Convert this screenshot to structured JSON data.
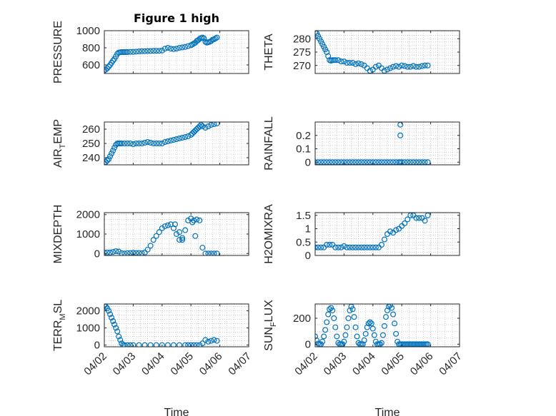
{
  "figure": {
    "title": "Figure 1 high",
    "background": "#ffffff",
    "marker_color": "#0072BD",
    "axes_color": "#262626",
    "grid_color": "#9a9a9a"
  },
  "chart_data": [
    {
      "type": "scatter",
      "id": "pressure",
      "title": "Figure 1 high",
      "ylabel": "PRESSURE",
      "xlabel": "",
      "xlim": [
        0,
        5
      ],
      "ylim": [
        500,
        1000
      ],
      "yticks": [
        600,
        800,
        1000
      ],
      "yticklabels": [
        "600",
        "800",
        "1000"
      ],
      "xticks": [
        0,
        1,
        2,
        3,
        4,
        5
      ],
      "xticklabels": [
        "04/02",
        "04/03",
        "04/04",
        "04/05",
        "04/06",
        "04/07"
      ],
      "show_xticklabels": false,
      "grid": true,
      "series": [
        {
          "x": [
            0,
            0.05,
            0.1,
            0.15,
            0.2,
            0.25,
            0.3,
            0.35,
            0.4,
            0.45,
            0.5,
            0.55,
            0.6,
            0.65,
            0.7,
            0.75,
            0.8,
            0.9,
            1.0,
            1.1,
            1.2,
            1.3,
            1.4,
            1.5,
            1.6,
            1.7,
            1.8,
            1.9,
            2.0,
            2.1,
            2.2,
            2.3,
            2.4,
            2.5,
            2.6,
            2.7,
            2.8,
            2.9,
            3.0,
            3.05,
            3.1,
            3.15,
            3.2,
            3.25,
            3.3,
            3.35,
            3.4,
            3.45,
            3.5,
            3.55,
            3.6,
            3.65,
            3.7,
            3.75,
            3.8,
            3.85,
            3.9
          ],
          "y": [
            535,
            545,
            560,
            580,
            600,
            625,
            650,
            670,
            700,
            730,
            745,
            748,
            750,
            750,
            750,
            750,
            750,
            752,
            752,
            755,
            758,
            760,
            760,
            762,
            762,
            765,
            765,
            765,
            768,
            790,
            800,
            790,
            785,
            790,
            800,
            805,
            810,
            820,
            830,
            840,
            850,
            860,
            880,
            890,
            905,
            915,
            920,
            910,
            870,
            860,
            865,
            870,
            880,
            895,
            900,
            910,
            920
          ]
        }
      ]
    },
    {
      "type": "scatter",
      "id": "theta",
      "ylabel": "THETA",
      "xlabel": "",
      "xlim": [
        0,
        5
      ],
      "ylim": [
        267,
        283
      ],
      "yticks": [
        270,
        275,
        280
      ],
      "yticklabels": [
        "270",
        "275",
        "280"
      ],
      "xticks": [
        0,
        1,
        2,
        3,
        4,
        5
      ],
      "xticklabels": [
        "04/02",
        "04/03",
        "04/04",
        "04/05",
        "04/06",
        "04/07"
      ],
      "show_xticklabels": false,
      "grid": true,
      "series": [
        {
          "x": [
            0,
            0.05,
            0.1,
            0.15,
            0.2,
            0.25,
            0.3,
            0.35,
            0.4,
            0.45,
            0.5,
            0.55,
            0.6,
            0.65,
            0.7,
            0.8,
            0.9,
            1.0,
            1.1,
            1.2,
            1.3,
            1.4,
            1.5,
            1.6,
            1.7,
            1.8,
            1.9,
            2.0,
            2.1,
            2.2,
            2.3,
            2.4,
            2.5,
            2.6,
            2.7,
            2.8,
            2.9,
            3.0,
            3.1,
            3.2,
            3.3,
            3.4,
            3.5,
            3.6,
            3.7,
            3.8,
            3.9
          ],
          "y": [
            282.5,
            282.0,
            281.0,
            280.0,
            279.0,
            278.0,
            277.0,
            276.0,
            275.0,
            273.5,
            272.0,
            271.8,
            272.0,
            272.0,
            272.0,
            272.0,
            271.5,
            271.5,
            271.0,
            271.0,
            271.0,
            270.5,
            270.8,
            270.5,
            270.0,
            269.0,
            268.0,
            268.5,
            269.5,
            270.0,
            269.0,
            268.0,
            268.5,
            269.0,
            269.5,
            269.8,
            269.5,
            270.0,
            269.8,
            269.5,
            269.5,
            269.8,
            269.5,
            269.5,
            269.8,
            270.0,
            270.0
          ]
        }
      ]
    },
    {
      "type": "scatter",
      "id": "air_temp",
      "ylabel": "AIR_TEMP",
      "ylabel_parts": [
        "AIR",
        "T",
        "EMP"
      ],
      "xlabel": "",
      "xlim": [
        0,
        5
      ],
      "ylim": [
        235,
        265
      ],
      "yticks": [
        240,
        250,
        260
      ],
      "yticklabels": [
        "240",
        "250",
        "260"
      ],
      "xticks": [
        0,
        1,
        2,
        3,
        4,
        5
      ],
      "xticklabels": [
        "04/02",
        "04/03",
        "04/04",
        "04/05",
        "04/06",
        "04/07"
      ],
      "show_xticklabels": false,
      "grid": true,
      "series": [
        {
          "x": [
            0,
            0.05,
            0.1,
            0.15,
            0.2,
            0.25,
            0.3,
            0.35,
            0.4,
            0.45,
            0.5,
            0.55,
            0.6,
            0.7,
            0.8,
            0.9,
            1.0,
            1.1,
            1.2,
            1.3,
            1.4,
            1.5,
            1.6,
            1.7,
            1.8,
            1.9,
            2.0,
            2.1,
            2.2,
            2.3,
            2.4,
            2.5,
            2.6,
            2.7,
            2.8,
            2.9,
            3.0,
            3.05,
            3.1,
            3.15,
            3.2,
            3.25,
            3.3,
            3.35,
            3.4,
            3.5,
            3.6,
            3.7,
            3.8,
            3.9
          ],
          "y": [
            236,
            237,
            238,
            239,
            241,
            243,
            245,
            247,
            249,
            250,
            250,
            250,
            250,
            250,
            250,
            250,
            249.5,
            250,
            250,
            250,
            250.5,
            251,
            250.5,
            250,
            250,
            250,
            250,
            251,
            251.5,
            252,
            252.5,
            253,
            253.5,
            254,
            254.5,
            255,
            256,
            257,
            258,
            259,
            260,
            261,
            262,
            263,
            262,
            261,
            262,
            263,
            263.5,
            264
          ]
        }
      ]
    },
    {
      "type": "scatter",
      "id": "rainfall",
      "ylabel": "RAINFALL",
      "xlabel": "",
      "xlim": [
        0,
        5
      ],
      "ylim": [
        -0.02,
        0.3
      ],
      "yticks": [
        0,
        0.1,
        0.2
      ],
      "yticklabels": [
        "0",
        "0.1",
        "0.2"
      ],
      "xticks": [
        0,
        1,
        2,
        3,
        4,
        5
      ],
      "xticklabels": [
        "04/02",
        "04/03",
        "04/04",
        "04/05",
        "04/06",
        "04/07"
      ],
      "show_xticklabels": false,
      "grid": true,
      "series": [
        {
          "x": [
            0,
            0.1,
            0.2,
            0.3,
            0.4,
            0.5,
            0.6,
            0.7,
            0.8,
            0.9,
            1.0,
            1.1,
            1.2,
            1.3,
            1.4,
            1.5,
            1.6,
            1.7,
            1.8,
            1.9,
            2.0,
            2.1,
            2.2,
            2.3,
            2.4,
            2.5,
            2.6,
            2.7,
            2.8,
            2.9,
            2.95,
            3.0,
            3.1,
            3.2,
            3.3,
            3.4,
            3.5,
            3.6,
            3.7,
            3.8,
            3.9,
            2.95,
            2.95
          ],
          "y": [
            0,
            0,
            0,
            0,
            0,
            0,
            0,
            0,
            0,
            0,
            0,
            0,
            0,
            0,
            0,
            0,
            0,
            0,
            0,
            0,
            0,
            0,
            0,
            0,
            0,
            0,
            0,
            0,
            0,
            0,
            0,
            0,
            0,
            0,
            0,
            0,
            0,
            0,
            0,
            0,
            0,
            0.28,
            0.2
          ]
        }
      ]
    },
    {
      "type": "scatter",
      "id": "mixdepth",
      "ylabel": "MIXDEPTH",
      "xlabel": "",
      "xlim": [
        0,
        5
      ],
      "ylim": [
        -100,
        2100
      ],
      "yticks": [
        0,
        1000,
        2000
      ],
      "yticklabels": [
        "0",
        "1000",
        "2000"
      ],
      "xticks": [
        0,
        1,
        2,
        3,
        4,
        5
      ],
      "xticklabels": [
        "04/02",
        "04/03",
        "04/04",
        "04/05",
        "04/06",
        "04/07"
      ],
      "show_xticklabels": false,
      "grid": true,
      "series": [
        {
          "x": [
            0,
            0.1,
            0.2,
            0.3,
            0.4,
            0.5,
            0.6,
            0.7,
            0.8,
            0.9,
            1.0,
            1.1,
            1.2,
            1.3,
            1.4,
            1.5,
            1.6,
            1.7,
            1.8,
            1.9,
            2.0,
            2.1,
            2.2,
            2.3,
            2.4,
            2.5,
            2.6,
            2.7,
            2.8,
            2.9,
            3.0,
            3.1,
            3.2,
            3.3,
            3.4,
            3.5,
            3.6,
            3.7,
            3.8,
            3.9,
            2.45,
            2.6,
            2.7,
            3.05,
            3.15
          ],
          "y": [
            50,
            50,
            50,
            80,
            120,
            100,
            20,
            0,
            20,
            30,
            40,
            30,
            30,
            20,
            50,
            200,
            400,
            700,
            900,
            1100,
            1300,
            1400,
            1450,
            1500,
            1300,
            1000,
            700,
            800,
            1200,
            1700,
            1800,
            1700,
            1750,
            1700,
            300,
            0,
            0,
            0,
            0,
            0,
            1500,
            1100,
            700,
            1600,
            900
          ]
        }
      ]
    },
    {
      "type": "scatter",
      "id": "h2omixra",
      "ylabel": "H2OMIXRA",
      "xlabel": "",
      "xlim": [
        0,
        5
      ],
      "ylim": [
        0,
        1.6
      ],
      "yticks": [
        0,
        0.5,
        1,
        1.5
      ],
      "yticklabels": [
        "0",
        "0.5",
        "1",
        "1.5"
      ],
      "xticks": [
        0,
        1,
        2,
        3,
        4,
        5
      ],
      "xticklabels": [
        "04/02",
        "04/03",
        "04/04",
        "04/05",
        "04/06",
        "04/07"
      ],
      "show_xticklabels": false,
      "grid": true,
      "series": [
        {
          "x": [
            0,
            0.1,
            0.2,
            0.3,
            0.4,
            0.5,
            0.6,
            0.7,
            0.8,
            0.9,
            1.0,
            1.1,
            1.2,
            1.3,
            1.4,
            1.5,
            1.6,
            1.7,
            1.8,
            1.9,
            2.0,
            2.1,
            2.2,
            2.3,
            2.4,
            2.5,
            2.6,
            2.7,
            2.8,
            2.9,
            3.0,
            3.1,
            3.2,
            3.3,
            3.4,
            3.5,
            3.6,
            3.7,
            3.8,
            3.9
          ],
          "y": [
            0.3,
            0.3,
            0.3,
            0.3,
            0.4,
            0.4,
            0.4,
            0.3,
            0.3,
            0.3,
            0.35,
            0.3,
            0.3,
            0.3,
            0.3,
            0.3,
            0.3,
            0.3,
            0.3,
            0.3,
            0.3,
            0.3,
            0.3,
            0.4,
            0.6,
            0.8,
            0.9,
            0.85,
            0.95,
            1.0,
            1.1,
            1.2,
            1.35,
            1.5,
            1.5,
            1.4,
            1.4,
            1.4,
            1.3,
            1.5
          ]
        }
      ]
    },
    {
      "type": "scatter",
      "id": "terr_msl",
      "ylabel": "TERR_MSL",
      "ylabel_parts": [
        "TERR",
        "M",
        "SL"
      ],
      "xlabel": "Time",
      "xlim": [
        0,
        5
      ],
      "ylim": [
        -100,
        2400
      ],
      "yticks": [
        0,
        1000,
        2000
      ],
      "yticklabels": [
        "0",
        "1000",
        "2000"
      ],
      "xticks": [
        0,
        1,
        2,
        3,
        4,
        5
      ],
      "xticklabels": [
        "04/02",
        "04/03",
        "04/04",
        "04/05",
        "04/06",
        "04/07"
      ],
      "show_xticklabels": true,
      "grid": true,
      "series": [
        {
          "x": [
            0,
            0.05,
            0.1,
            0.15,
            0.2,
            0.25,
            0.3,
            0.35,
            0.4,
            0.45,
            0.5,
            0.55,
            0.6,
            0.65,
            0.7,
            0.8,
            0.9,
            1.0,
            1.2,
            1.4,
            1.6,
            1.8,
            2.0,
            2.2,
            2.4,
            2.6,
            2.8,
            2.9,
            3.0,
            3.1,
            3.2,
            3.3,
            3.4,
            3.5,
            3.6,
            3.7,
            3.8,
            3.9
          ],
          "y": [
            2300,
            2250,
            2150,
            2000,
            1800,
            1600,
            1400,
            1200,
            1000,
            800,
            500,
            300,
            100,
            0,
            0,
            0,
            0,
            0,
            0,
            0,
            0,
            0,
            0,
            0,
            0,
            0,
            0,
            0,
            0,
            0,
            0,
            0,
            100,
            300,
            200,
            250,
            300,
            250
          ]
        }
      ]
    },
    {
      "type": "scatter",
      "id": "sun_flux",
      "ylabel": "SUN_FLUX",
      "ylabel_parts": [
        "SUN",
        "F",
        "LUX"
      ],
      "xlabel": "Time",
      "xlim": [
        0,
        5
      ],
      "ylim": [
        -20,
        310
      ],
      "yticks": [
        0,
        200
      ],
      "yticklabels": [
        "0",
        "200"
      ],
      "xticks": [
        0,
        1,
        2,
        3,
        4,
        5
      ],
      "xticklabels": [
        "04/02",
        "04/03",
        "04/04",
        "04/05",
        "04/06",
        "04/07"
      ],
      "show_xticklabels": true,
      "grid": true,
      "series": [
        {
          "x": [
            0.0,
            0.05,
            0.1,
            0.15,
            0.2,
            0.25,
            0.3,
            0.35,
            0.4,
            0.45,
            0.5,
            0.55,
            0.6,
            0.65,
            0.7,
            0.75,
            0.8,
            0.85,
            0.9,
            0.95,
            1.0,
            1.05,
            1.1,
            1.15,
            1.2,
            1.25,
            1.3,
            1.35,
            1.4,
            1.45,
            1.5,
            1.55,
            1.6,
            1.65,
            1.7,
            1.75,
            1.8,
            1.85,
            1.9,
            1.95,
            2.0,
            2.05,
            2.1,
            2.15,
            2.2,
            2.25,
            2.3,
            2.35,
            2.4,
            2.45,
            2.5,
            2.55,
            2.6,
            2.65,
            2.7,
            2.75,
            2.8,
            2.85,
            2.9,
            2.95,
            3.0,
            3.05,
            3.1,
            3.15,
            3.2,
            3.25,
            3.3,
            3.35,
            3.4,
            3.45,
            3.5,
            3.55,
            3.6,
            3.65,
            3.7,
            3.75,
            3.8,
            3.85,
            3.9
          ],
          "y": [
            60,
            30,
            5,
            0,
            0,
            20,
            60,
            110,
            170,
            230,
            270,
            280,
            260,
            200,
            130,
            60,
            10,
            0,
            0,
            0,
            20,
            70,
            130,
            200,
            260,
            290,
            270,
            210,
            130,
            60,
            10,
            0,
            0,
            0,
            30,
            80,
            130,
            160,
            170,
            160,
            120,
            70,
            20,
            0,
            0,
            0,
            10,
            70,
            140,
            210,
            260,
            290,
            300,
            280,
            230,
            160,
            80,
            20,
            0,
            0,
            0,
            0,
            0,
            0,
            0,
            0,
            0,
            0,
            0,
            0,
            0,
            0,
            0,
            0,
            0,
            0,
            0,
            0,
            0
          ]
        }
      ]
    }
  ]
}
